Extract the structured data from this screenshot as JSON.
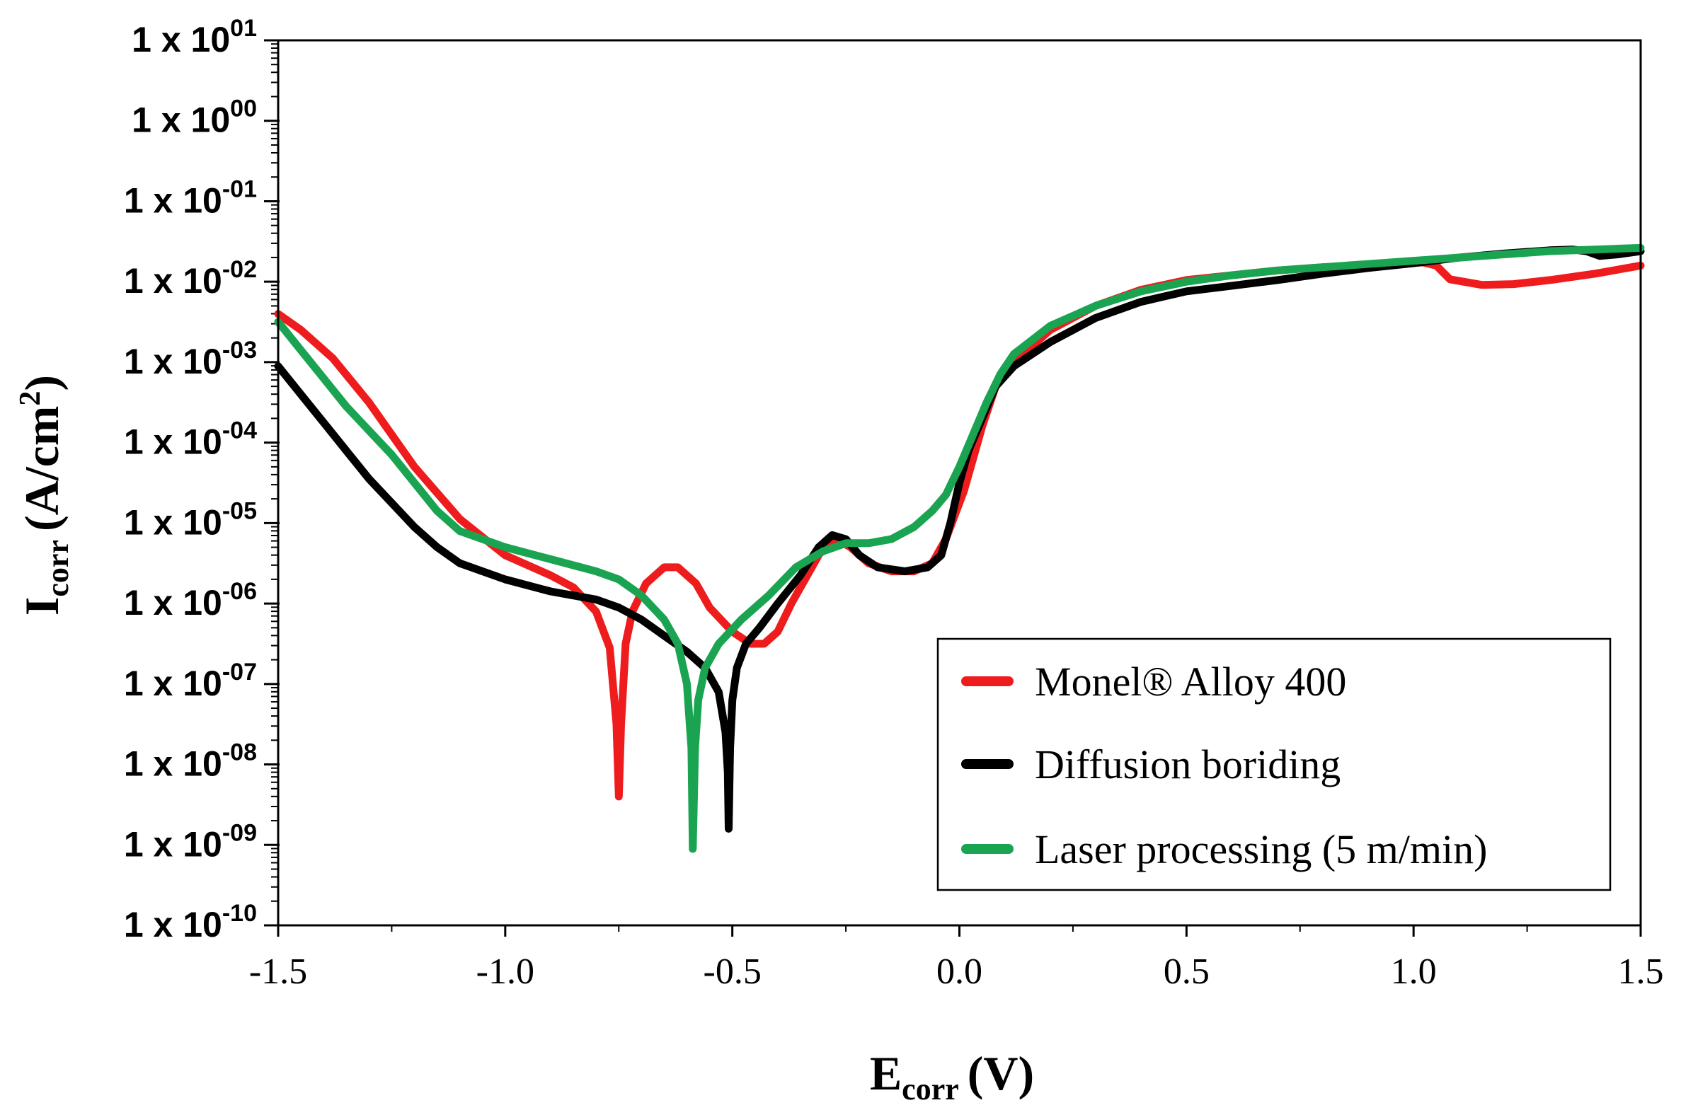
{
  "chart_data": {
    "type": "line",
    "title": "",
    "xlabel_main": "E",
    "xlabel_sub": "corr",
    "xlabel_unit": "(V)",
    "ylabel_main": "I",
    "ylabel_sub": "corr",
    "ylabel_unit_a": "(A/cm",
    "ylabel_unit_sup": "2",
    "ylabel_unit_b": ")",
    "xlim": [
      -1.5,
      1.5
    ],
    "ylim_log10": [
      -10,
      1
    ],
    "xticks": [
      {
        "value": -1.5,
        "label": "-1.5"
      },
      {
        "value": -1.0,
        "label": "-1.0"
      },
      {
        "value": -0.5,
        "label": "-0.5"
      },
      {
        "value": 0.0,
        "label": "0.0"
      },
      {
        "value": 0.5,
        "label": "0.5"
      },
      {
        "value": 1.0,
        "label": "1.0"
      },
      {
        "value": 1.5,
        "label": "1.5"
      }
    ],
    "yticks": [
      {
        "exp": 1,
        "mantissa": "1 x 10",
        "sup": "01"
      },
      {
        "exp": 0,
        "mantissa": "1 x 10",
        "sup": "00"
      },
      {
        "exp": -1,
        "mantissa": "1 x 10",
        "sup": "-01"
      },
      {
        "exp": -2,
        "mantissa": "1 x 10",
        "sup": "-02"
      },
      {
        "exp": -3,
        "mantissa": "1 x 10",
        "sup": "-03"
      },
      {
        "exp": -4,
        "mantissa": "1 x 10",
        "sup": "-04"
      },
      {
        "exp": -5,
        "mantissa": "1 x 10",
        "sup": "-05"
      },
      {
        "exp": -6,
        "mantissa": "1 x 10",
        "sup": "-06"
      },
      {
        "exp": -7,
        "mantissa": "1 x 10",
        "sup": "-07"
      },
      {
        "exp": -8,
        "mantissa": "1 x 10",
        "sup": "-08"
      },
      {
        "exp": -9,
        "mantissa": "1 x 10",
        "sup": "-09"
      },
      {
        "exp": -10,
        "mantissa": "1 x 10",
        "sup": "-10"
      }
    ],
    "legend_position": "bottom-right",
    "series": [
      {
        "name": "Monel® Alloy 400",
        "color": "#ee1c1c",
        "points": [
          [
            -1.5,
            -2.4
          ],
          [
            -1.45,
            -2.6
          ],
          [
            -1.38,
            -2.95
          ],
          [
            -1.3,
            -3.5
          ],
          [
            -1.2,
            -4.3
          ],
          [
            -1.1,
            -4.95
          ],
          [
            -1.0,
            -5.4
          ],
          [
            -0.9,
            -5.65
          ],
          [
            -0.85,
            -5.8
          ],
          [
            -0.8,
            -6.1
          ],
          [
            -0.77,
            -6.55
          ],
          [
            -0.755,
            -7.5
          ],
          [
            -0.75,
            -8.4
          ],
          [
            -0.745,
            -7.5
          ],
          [
            -0.735,
            -6.5
          ],
          [
            -0.72,
            -6.1
          ],
          [
            -0.69,
            -5.75
          ],
          [
            -0.65,
            -5.55
          ],
          [
            -0.62,
            -5.55
          ],
          [
            -0.58,
            -5.75
          ],
          [
            -0.55,
            -6.05
          ],
          [
            -0.5,
            -6.35
          ],
          [
            -0.46,
            -6.5
          ],
          [
            -0.43,
            -6.5
          ],
          [
            -0.4,
            -6.35
          ],
          [
            -0.37,
            -6.0
          ],
          [
            -0.33,
            -5.6
          ],
          [
            -0.3,
            -5.3
          ],
          [
            -0.27,
            -5.2
          ],
          [
            -0.24,
            -5.3
          ],
          [
            -0.2,
            -5.5
          ],
          [
            -0.15,
            -5.6
          ],
          [
            -0.1,
            -5.6
          ],
          [
            -0.06,
            -5.5
          ],
          [
            -0.03,
            -5.2
          ],
          [
            -0.01,
            -4.9
          ],
          [
            0.01,
            -4.6
          ],
          [
            0.03,
            -4.2
          ],
          [
            0.05,
            -3.8
          ],
          [
            0.08,
            -3.3
          ],
          [
            0.12,
            -3.0
          ],
          [
            0.2,
            -2.6
          ],
          [
            0.3,
            -2.3
          ],
          [
            0.4,
            -2.1
          ],
          [
            0.5,
            -1.98
          ],
          [
            0.6,
            -1.92
          ],
          [
            0.7,
            -1.86
          ],
          [
            0.8,
            -1.82
          ],
          [
            0.9,
            -1.8
          ],
          [
            0.97,
            -1.78
          ],
          [
            1.02,
            -1.76
          ],
          [
            1.05,
            -1.8
          ],
          [
            1.08,
            -1.97
          ],
          [
            1.15,
            -2.04
          ],
          [
            1.22,
            -2.03
          ],
          [
            1.3,
            -1.98
          ],
          [
            1.4,
            -1.9
          ],
          [
            1.5,
            -1.8
          ]
        ]
      },
      {
        "name": "Diffusion boriding",
        "color": "#000000",
        "points": [
          [
            -1.5,
            -3.05
          ],
          [
            -1.45,
            -3.4
          ],
          [
            -1.4,
            -3.75
          ],
          [
            -1.35,
            -4.1
          ],
          [
            -1.3,
            -4.45
          ],
          [
            -1.25,
            -4.75
          ],
          [
            -1.2,
            -5.05
          ],
          [
            -1.15,
            -5.3
          ],
          [
            -1.1,
            -5.5
          ],
          [
            -1.0,
            -5.7
          ],
          [
            -0.9,
            -5.85
          ],
          [
            -0.8,
            -5.95
          ],
          [
            -0.75,
            -6.05
          ],
          [
            -0.7,
            -6.2
          ],
          [
            -0.65,
            -6.4
          ],
          [
            -0.6,
            -6.6
          ],
          [
            -0.56,
            -6.8
          ],
          [
            -0.53,
            -7.1
          ],
          [
            -0.515,
            -7.6
          ],
          [
            -0.51,
            -8.1
          ],
          [
            -0.508,
            -8.8
          ],
          [
            -0.505,
            -7.8
          ],
          [
            -0.5,
            -7.2
          ],
          [
            -0.49,
            -6.8
          ],
          [
            -0.47,
            -6.5
          ],
          [
            -0.44,
            -6.3
          ],
          [
            -0.4,
            -6.0
          ],
          [
            -0.35,
            -5.65
          ],
          [
            -0.31,
            -5.3
          ],
          [
            -0.28,
            -5.15
          ],
          [
            -0.25,
            -5.2
          ],
          [
            -0.22,
            -5.4
          ],
          [
            -0.18,
            -5.55
          ],
          [
            -0.12,
            -5.6
          ],
          [
            -0.07,
            -5.55
          ],
          [
            -0.04,
            -5.4
          ],
          [
            -0.02,
            -5.0
          ],
          [
            0.0,
            -4.5
          ],
          [
            0.02,
            -4.1
          ],
          [
            0.05,
            -3.7
          ],
          [
            0.08,
            -3.3
          ],
          [
            0.12,
            -3.05
          ],
          [
            0.2,
            -2.75
          ],
          [
            0.3,
            -2.45
          ],
          [
            0.4,
            -2.25
          ],
          [
            0.5,
            -2.12
          ],
          [
            0.6,
            -2.05
          ],
          [
            0.7,
            -1.98
          ],
          [
            0.8,
            -1.9
          ],
          [
            0.9,
            -1.83
          ],
          [
            1.0,
            -1.77
          ],
          [
            1.1,
            -1.7
          ],
          [
            1.2,
            -1.65
          ],
          [
            1.3,
            -1.61
          ],
          [
            1.35,
            -1.6
          ],
          [
            1.38,
            -1.62
          ],
          [
            1.41,
            -1.68
          ],
          [
            1.45,
            -1.66
          ],
          [
            1.5,
            -1.62
          ]
        ]
      },
      {
        "name": "Laser processing (5 m/min)",
        "color": "#1aa452",
        "points": [
          [
            -1.5,
            -2.5
          ],
          [
            -1.45,
            -2.85
          ],
          [
            -1.4,
            -3.2
          ],
          [
            -1.35,
            -3.55
          ],
          [
            -1.3,
            -3.85
          ],
          [
            -1.25,
            -4.15
          ],
          [
            -1.2,
            -4.5
          ],
          [
            -1.15,
            -4.85
          ],
          [
            -1.1,
            -5.1
          ],
          [
            -1.0,
            -5.3
          ],
          [
            -0.9,
            -5.45
          ],
          [
            -0.8,
            -5.6
          ],
          [
            -0.75,
            -5.7
          ],
          [
            -0.7,
            -5.9
          ],
          [
            -0.65,
            -6.2
          ],
          [
            -0.62,
            -6.5
          ],
          [
            -0.6,
            -7.0
          ],
          [
            -0.59,
            -7.8
          ],
          [
            -0.587,
            -9.05
          ],
          [
            -0.582,
            -7.8
          ],
          [
            -0.575,
            -7.2
          ],
          [
            -0.56,
            -6.8
          ],
          [
            -0.53,
            -6.5
          ],
          [
            -0.48,
            -6.2
          ],
          [
            -0.42,
            -5.9
          ],
          [
            -0.36,
            -5.55
          ],
          [
            -0.3,
            -5.35
          ],
          [
            -0.25,
            -5.25
          ],
          [
            -0.2,
            -5.25
          ],
          [
            -0.15,
            -5.2
          ],
          [
            -0.1,
            -5.05
          ],
          [
            -0.06,
            -4.85
          ],
          [
            -0.03,
            -4.65
          ],
          [
            0.0,
            -4.3
          ],
          [
            0.03,
            -3.9
          ],
          [
            0.06,
            -3.5
          ],
          [
            0.09,
            -3.15
          ],
          [
            0.12,
            -2.9
          ],
          [
            0.2,
            -2.55
          ],
          [
            0.3,
            -2.3
          ],
          [
            0.4,
            -2.12
          ],
          [
            0.5,
            -2.0
          ],
          [
            0.6,
            -1.92
          ],
          [
            0.7,
            -1.86
          ],
          [
            0.8,
            -1.82
          ],
          [
            0.9,
            -1.78
          ],
          [
            1.0,
            -1.74
          ],
          [
            1.1,
            -1.7
          ],
          [
            1.2,
            -1.66
          ],
          [
            1.3,
            -1.62
          ],
          [
            1.4,
            -1.6
          ],
          [
            1.5,
            -1.58
          ]
        ]
      }
    ]
  }
}
